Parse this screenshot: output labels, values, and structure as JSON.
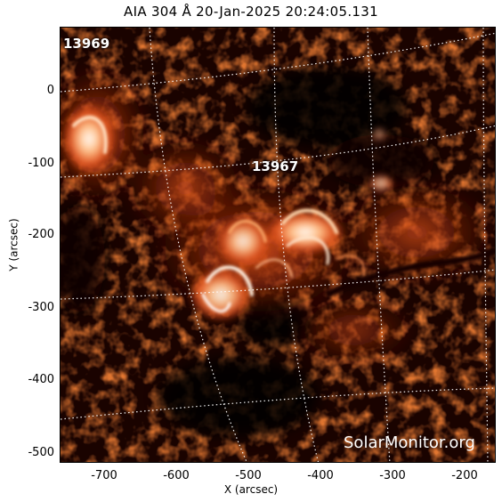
{
  "title": "AIA 304 Å 20-Jan-2025 20:24:05.131",
  "axes": {
    "xlabel": "X (arcsec)",
    "ylabel": "Y (arcsec)",
    "xticks": [
      "-700",
      "-600",
      "-500",
      "-400",
      "-300",
      "-200"
    ],
    "yticks": [
      "0",
      "-100",
      "-200",
      "-300",
      "-400",
      "-500"
    ]
  },
  "active_regions": [
    {
      "label": "13969"
    },
    {
      "label": "13967"
    }
  ],
  "watermark": "SolarMonitor.org",
  "colors": {
    "background": "#000000",
    "bright": "#ffffff",
    "mid": "#e8541a",
    "dim": "#8a1a05"
  }
}
